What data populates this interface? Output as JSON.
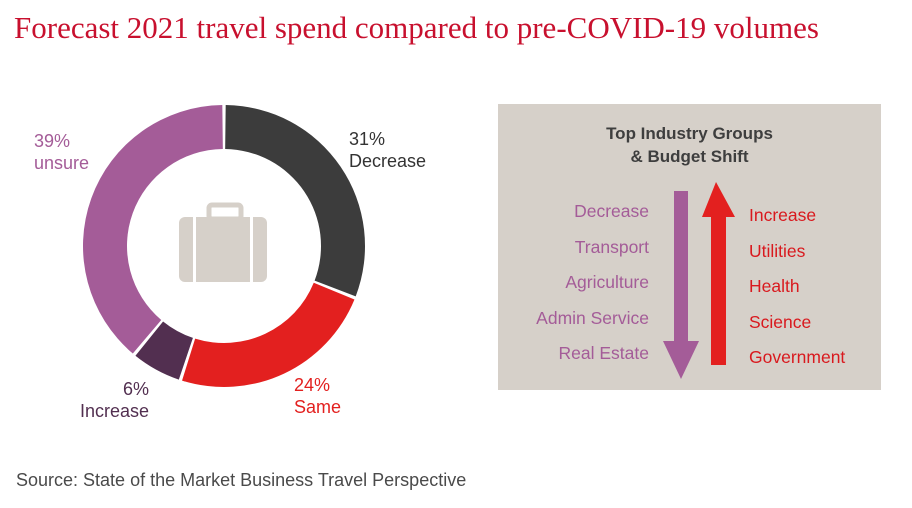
{
  "title": "Forecast 2021 travel spend compared to pre-COVID-19 volumes",
  "chart_data": {
    "type": "pie",
    "style": "donut",
    "center_icon": "suitcase-icon",
    "slices": [
      {
        "label": "Decrease",
        "percent_text": "31%",
        "value": 31,
        "color": "#3c3c3c"
      },
      {
        "label": "Same",
        "percent_text": "24%",
        "value": 24,
        "color": "#e3201f"
      },
      {
        "label": "Increase",
        "percent_text": "6%",
        "value": 6,
        "color": "#522f50"
      },
      {
        "label": "unsure",
        "percent_text": "39%",
        "value": 39,
        "color": "#a45c98"
      }
    ]
  },
  "panel": {
    "title_line1": "Top Industry Groups",
    "title_line2": "& Budget Shift",
    "decrease_items": [
      "Decrease",
      "Transport",
      "Agriculture",
      "Admin Service",
      "Real Estate"
    ],
    "increase_items": [
      "Increase",
      "Utilities",
      "Health",
      "Science",
      "Government"
    ],
    "decrease_color": "#a45c98",
    "increase_color": "#d9191e",
    "background": "#d6d0c9"
  },
  "source": "Source: State of the Market Business Travel Perspective"
}
